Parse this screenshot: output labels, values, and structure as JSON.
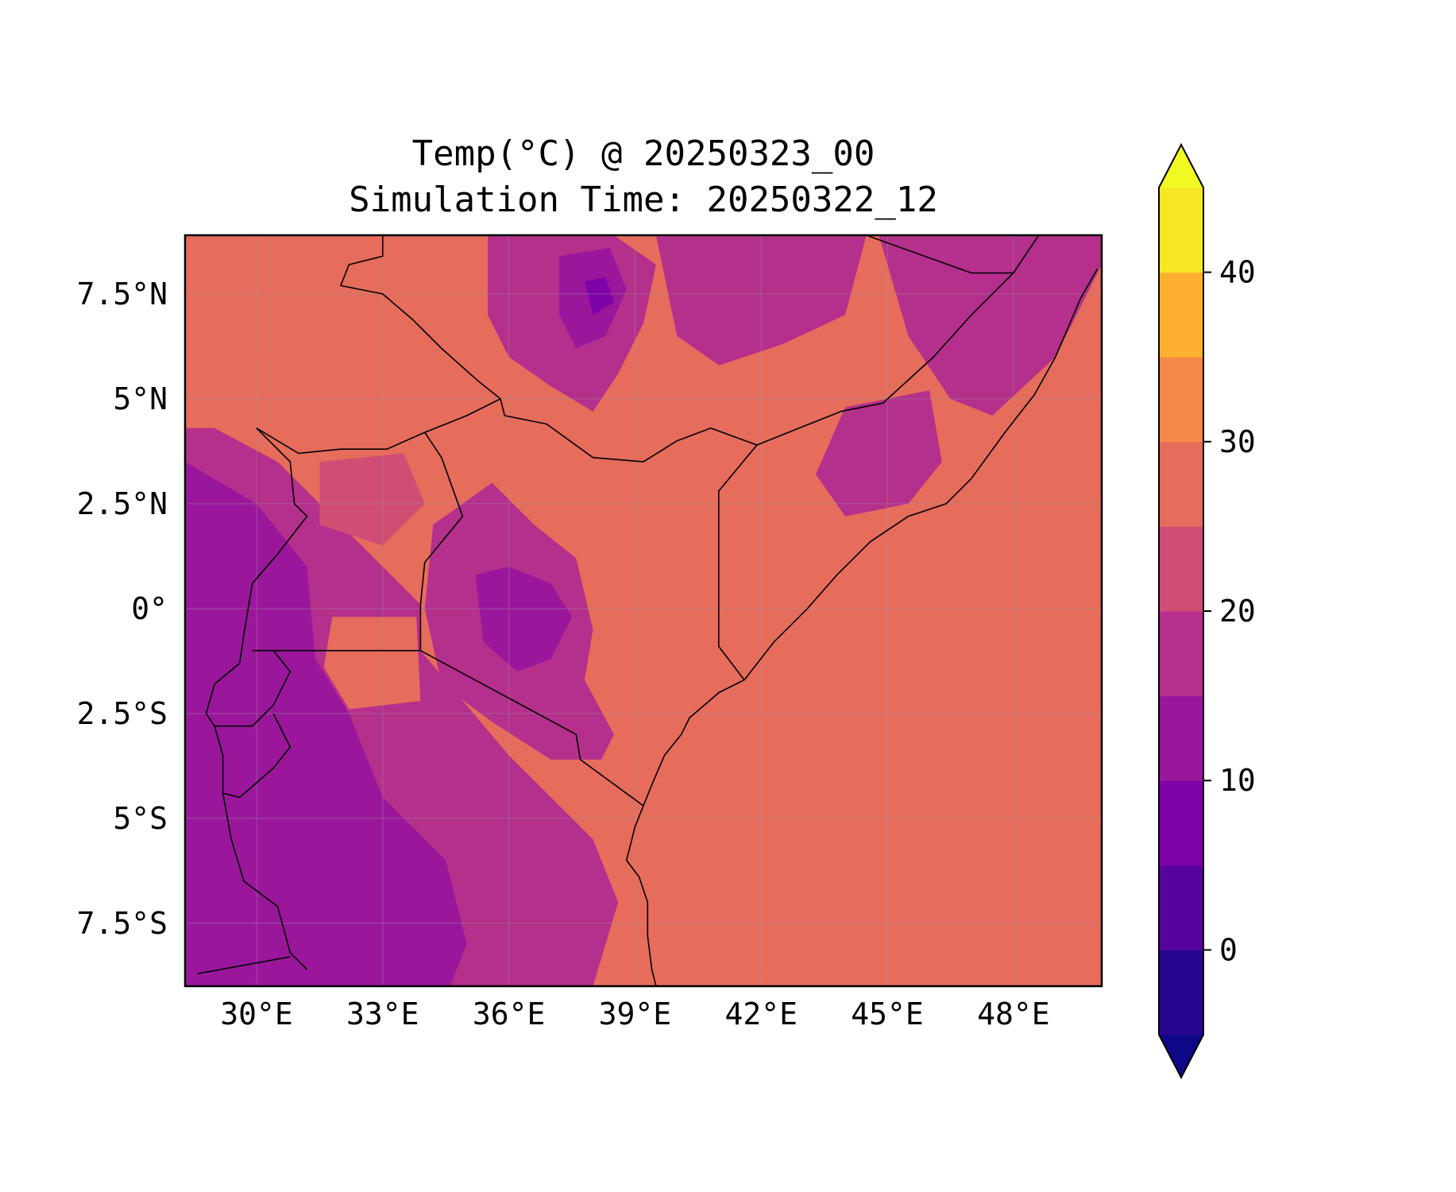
{
  "title": {
    "line1": "Temp(°C) @ 20250323_00",
    "line2": "Simulation Time: 20250322_12"
  },
  "map": {
    "extent": {
      "lon_min": 28.3,
      "lon_max": 50.1,
      "lat_min": -9.0,
      "lat_max": 8.9
    },
    "lon_ticks": [
      {
        "value": 30,
        "label": "30°E"
      },
      {
        "value": 33,
        "label": "33°E"
      },
      {
        "value": 36,
        "label": "36°E"
      },
      {
        "value": 39,
        "label": "39°E"
      },
      {
        "value": 42,
        "label": "42°E"
      },
      {
        "value": 45,
        "label": "45°E"
      },
      {
        "value": 48,
        "label": "48°E"
      }
    ],
    "lat_ticks": [
      {
        "value": 7.5,
        "label": "7.5°N"
      },
      {
        "value": 5,
        "label": "5°N"
      },
      {
        "value": 2.5,
        "label": "2.5°N"
      },
      {
        "value": 0,
        "label": "0°"
      },
      {
        "value": -2.5,
        "label": "2.5°S"
      },
      {
        "value": -5,
        "label": "5°S"
      },
      {
        "value": -7.5,
        "label": "7.5°S"
      }
    ],
    "gridlines": true,
    "borders": [
      {
        "name": "uganda-kenya",
        "coords": [
          [
            34.0,
            4.2
          ],
          [
            34.4,
            3.6
          ],
          [
            34.9,
            2.2
          ],
          [
            34.0,
            1.1
          ],
          [
            33.9,
            0.1
          ],
          [
            33.9,
            -1.0
          ]
        ]
      },
      {
        "name": "kenya-tanzania",
        "coords": [
          [
            33.9,
            -1.0
          ],
          [
            37.6,
            -3.0
          ],
          [
            37.7,
            -3.6
          ],
          [
            39.2,
            -4.7
          ]
        ]
      },
      {
        "name": "kenya-south-sudan-ethiopia",
        "coords": [
          [
            34.0,
            4.2
          ],
          [
            35.0,
            4.6
          ],
          [
            35.8,
            5.0
          ],
          [
            35.9,
            4.6
          ],
          [
            36.9,
            4.4
          ],
          [
            38.0,
            3.6
          ],
          [
            39.2,
            3.5
          ],
          [
            40.0,
            4.0
          ],
          [
            40.8,
            4.3
          ],
          [
            41.9,
            3.9
          ]
        ]
      },
      {
        "name": "kenya-somalia",
        "coords": [
          [
            41.9,
            3.9
          ],
          [
            40.99,
            2.8
          ],
          [
            40.99,
            -0.9
          ],
          [
            41.6,
            -1.7
          ]
        ]
      },
      {
        "name": "ethiopia-somalia",
        "coords": [
          [
            41.9,
            3.9
          ],
          [
            42.9,
            4.3
          ],
          [
            43.9,
            4.7
          ],
          [
            44.9,
            4.9
          ],
          [
            46.1,
            6.0
          ],
          [
            47.0,
            7.0
          ],
          [
            48.0,
            8.0
          ]
        ]
      },
      {
        "name": "somaliland-border",
        "coords": [
          [
            44.5,
            8.9
          ],
          [
            47.0,
            8.0
          ],
          [
            48.0,
            8.0
          ],
          [
            48.6,
            8.9
          ]
        ]
      },
      {
        "name": "uganda-south-sudan-drc",
        "coords": [
          [
            30.0,
            4.3
          ],
          [
            31.0,
            3.7
          ],
          [
            32.0,
            3.8
          ],
          [
            33.1,
            3.8
          ],
          [
            34.0,
            4.2
          ]
        ]
      },
      {
        "name": "drc-uganda",
        "coords": [
          [
            30.0,
            4.3
          ],
          [
            30.8,
            3.5
          ],
          [
            30.9,
            2.5
          ],
          [
            31.2,
            2.2
          ],
          [
            30.5,
            1.3
          ],
          [
            29.9,
            0.6
          ],
          [
            29.7,
            -0.6
          ],
          [
            29.6,
            -1.3
          ]
        ]
      },
      {
        "name": "uganda-tanzania-lake",
        "coords": [
          [
            29.9,
            -1.0
          ],
          [
            33.9,
            -1.0
          ]
        ]
      },
      {
        "name": "rwanda-burundi",
        "coords": [
          [
            29.6,
            -1.3
          ],
          [
            29.0,
            -1.8
          ],
          [
            28.8,
            -2.5
          ],
          [
            29.0,
            -2.8
          ],
          [
            29.9,
            -2.8
          ],
          [
            30.4,
            -2.3
          ],
          [
            30.8,
            -1.5
          ],
          [
            30.4,
            -1.0
          ]
        ]
      },
      {
        "name": "burundi-tanzania",
        "coords": [
          [
            29.0,
            -2.8
          ],
          [
            29.2,
            -3.5
          ],
          [
            29.2,
            -4.4
          ],
          [
            29.6,
            -4.5
          ],
          [
            30.4,
            -3.8
          ],
          [
            30.8,
            -3.3
          ],
          [
            30.4,
            -2.5
          ]
        ]
      },
      {
        "name": "lake-tanganyika-west",
        "coords": [
          [
            29.2,
            -4.4
          ],
          [
            29.4,
            -5.5
          ],
          [
            29.7,
            -6.5
          ],
          [
            30.5,
            -7.1
          ],
          [
            30.8,
            -8.2
          ],
          [
            31.2,
            -8.6
          ]
        ]
      },
      {
        "name": "zambia-tanzania",
        "coords": [
          [
            28.6,
            -8.7
          ],
          [
            30.8,
            -8.3
          ]
        ]
      },
      {
        "name": "south-sudan-ethiopia",
        "coords": [
          [
            33.0,
            8.9
          ],
          [
            33.0,
            8.4
          ],
          [
            32.2,
            8.2
          ],
          [
            32.0,
            7.7
          ],
          [
            33.0,
            7.5
          ],
          [
            33.7,
            6.9
          ],
          [
            34.4,
            6.2
          ],
          [
            35.3,
            5.4
          ],
          [
            35.8,
            5.0
          ]
        ]
      },
      {
        "name": "coast",
        "coords": [
          [
            39.2,
            -4.7
          ],
          [
            39.4,
            -4.2
          ],
          [
            39.7,
            -3.5
          ],
          [
            40.1,
            -3.0
          ],
          [
            40.3,
            -2.6
          ],
          [
            41.0,
            -2.0
          ],
          [
            41.6,
            -1.7
          ],
          [
            42.3,
            -0.8
          ],
          [
            43.1,
            0.0
          ],
          [
            43.8,
            0.8
          ],
          [
            44.6,
            1.6
          ],
          [
            45.5,
            2.2
          ],
          [
            46.4,
            2.5
          ],
          [
            47.0,
            3.1
          ],
          [
            47.8,
            4.2
          ],
          [
            48.5,
            5.1
          ],
          [
            49.0,
            6.0
          ],
          [
            49.6,
            7.4
          ],
          [
            50.0,
            8.1
          ]
        ]
      },
      {
        "name": "coast-south",
        "coords": [
          [
            39.2,
            -4.7
          ],
          [
            39.0,
            -5.2
          ],
          [
            38.8,
            -6.0
          ],
          [
            39.1,
            -6.4
          ],
          [
            39.3,
            -7.0
          ],
          [
            39.3,
            -7.8
          ],
          [
            39.4,
            -8.6
          ],
          [
            39.5,
            -9.0
          ]
        ]
      }
    ]
  },
  "field": {
    "variable": "Temp(°C)",
    "background_level_index": 7
  },
  "colorbar": {
    "levels": [
      -5,
      0,
      5,
      10,
      15,
      20,
      25,
      30,
      35,
      40,
      45
    ],
    "colors": [
      "#1b068d",
      "#4c02a1",
      "#7e03a8",
      "#a92395",
      "#cc4778",
      "#d5536f",
      "#e8735a",
      "#e97150",
      "#f89540",
      "#fdb32f",
      "#f0f921"
    ],
    "band_colors": [
      "#26068f",
      "#57039d",
      "#7e03a8",
      "#9a179b",
      "#b52f8c",
      "#d04e73",
      "#e66c5c",
      "#f48849",
      "#fdb030",
      "#f6e726"
    ],
    "extend_low_color": "#0d0887",
    "extend_high_color": "#f0f921",
    "ticks": [
      {
        "value": 0,
        "label": "0"
      },
      {
        "value": 10,
        "label": "10"
      },
      {
        "value": 20,
        "label": "20"
      },
      {
        "value": 30,
        "label": "30"
      },
      {
        "value": 40,
        "label": "40"
      }
    ]
  },
  "regions": [
    {
      "name": "ethiopian-highlands",
      "level": 5,
      "coords": [
        [
          35.5,
          8.9
        ],
        [
          38.5,
          8.9
        ],
        [
          39.5,
          8.2
        ],
        [
          39.2,
          6.8
        ],
        [
          38.6,
          5.6
        ],
        [
          38.0,
          4.7
        ],
        [
          37.0,
          5.3
        ],
        [
          36.0,
          6.0
        ],
        [
          35.5,
          7.0
        ]
      ]
    },
    {
      "name": "ethiopian-core",
      "level": 4,
      "coords": [
        [
          37.2,
          8.4
        ],
        [
          38.4,
          8.6
        ],
        [
          38.8,
          7.6
        ],
        [
          38.3,
          6.5
        ],
        [
          37.6,
          6.2
        ],
        [
          37.2,
          7.0
        ]
      ]
    },
    {
      "name": "ethiopian-cold",
      "level": 3,
      "coords": [
        [
          37.8,
          7.8
        ],
        [
          38.3,
          7.9
        ],
        [
          38.5,
          7.3
        ],
        [
          38.0,
          7.0
        ]
      ]
    },
    {
      "name": "east-ethiopia-cool",
      "level": 5,
      "coords": [
        [
          39.5,
          8.9
        ],
        [
          44.5,
          8.9
        ],
        [
          44.0,
          7.0
        ],
        [
          42.5,
          6.3
        ],
        [
          41.0,
          5.8
        ],
        [
          40.0,
          6.5
        ]
      ]
    },
    {
      "name": "somalia-north-cool",
      "level": 5,
      "coords": [
        [
          44.8,
          8.9
        ],
        [
          50.1,
          8.9
        ],
        [
          50.1,
          8.2
        ],
        [
          49.0,
          6.0
        ],
        [
          47.5,
          4.6
        ],
        [
          46.5,
          5.0
        ],
        [
          45.5,
          6.5
        ]
      ]
    },
    {
      "name": "kenya-highlands",
      "level": 5,
      "coords": [
        [
          34.2,
          2.0
        ],
        [
          35.6,
          3.0
        ],
        [
          36.6,
          2.0
        ],
        [
          37.6,
          1.2
        ],
        [
          38.0,
          -0.5
        ],
        [
          37.8,
          -1.7
        ],
        [
          38.5,
          -3.0
        ],
        [
          38.2,
          -3.6
        ],
        [
          37.0,
          -3.6
        ],
        [
          35.6,
          -2.7
        ],
        [
          34.4,
          -1.8
        ],
        [
          34.0,
          0.0
        ]
      ]
    },
    {
      "name": "kenya-highlands-core",
      "level": 4,
      "coords": [
        [
          35.2,
          0.8
        ],
        [
          36.0,
          1.0
        ],
        [
          37.0,
          0.6
        ],
        [
          37.5,
          -0.2
        ],
        [
          37.0,
          -1.2
        ],
        [
          36.2,
          -1.5
        ],
        [
          35.4,
          -0.8
        ]
      ]
    },
    {
      "name": "lake-basin-west",
      "level": 5,
      "coords": [
        [
          28.3,
          8.9
        ],
        [
          28.3,
          -9.0
        ],
        [
          38.0,
          -9.0
        ],
        [
          38.6,
          -7.0
        ],
        [
          38.0,
          -5.5
        ],
        [
          36.0,
          -3.5
        ],
        [
          33.9,
          -1.0
        ],
        [
          33.9,
          0.1
        ],
        [
          32.0,
          2.0
        ],
        [
          30.5,
          3.5
        ],
        [
          29.0,
          4.3
        ],
        [
          28.3,
          4.3
        ]
      ]
    },
    {
      "name": "western-highlands",
      "level": 4,
      "coords": [
        [
          28.3,
          3.5
        ],
        [
          30.0,
          2.5
        ],
        [
          31.2,
          1.0
        ],
        [
          31.4,
          -1.2
        ],
        [
          32.2,
          -2.5
        ],
        [
          33.0,
          -4.5
        ],
        [
          34.5,
          -6.0
        ],
        [
          35.0,
          -8.0
        ],
        [
          34.6,
          -9.0
        ],
        [
          28.3,
          -9.0
        ]
      ]
    },
    {
      "name": "lake-victoria-warm",
      "level": 7,
      "coords": [
        [
          31.8,
          -0.2
        ],
        [
          33.8,
          -0.2
        ],
        [
          33.9,
          -2.2
        ],
        [
          32.2,
          -2.4
        ],
        [
          31.6,
          -1.4
        ]
      ]
    },
    {
      "name": "south-sudan-warm",
      "level": 7,
      "coords": [
        [
          30.5,
          6.5
        ],
        [
          33.7,
          6.9
        ],
        [
          34.8,
          6.0
        ],
        [
          34.0,
          5.2
        ],
        [
          32.0,
          5.3
        ],
        [
          30.2,
          6.0
        ]
      ]
    },
    {
      "name": "uganda-north-warm",
      "level": 6,
      "coords": [
        [
          31.5,
          3.5
        ],
        [
          33.5,
          3.7
        ],
        [
          34.0,
          2.5
        ],
        [
          33.0,
          1.5
        ],
        [
          31.5,
          2.0
        ]
      ]
    },
    {
      "name": "tanzania-coast-warm",
      "level": 7,
      "coords": [
        [
          39.5,
          -3.8
        ],
        [
          41.5,
          -3.6
        ],
        [
          43.0,
          -4.2
        ],
        [
          45.0,
          -4.8
        ],
        [
          47.0,
          -5.8
        ],
        [
          48.5,
          -7.0
        ],
        [
          48.8,
          -8.3
        ],
        [
          46.0,
          -8.8
        ],
        [
          42.0,
          -8.6
        ],
        [
          40.5,
          -8.5
        ],
        [
          39.4,
          -7.8
        ],
        [
          39.0,
          -6.0
        ],
        [
          38.8,
          -5.0
        ]
      ]
    },
    {
      "name": "rift-valley-warm",
      "level": 7,
      "coords": [
        [
          35.8,
          4.5
        ],
        [
          36.3,
          4.5
        ],
        [
          36.6,
          3.0
        ],
        [
          36.2,
          2.8
        ]
      ]
    },
    {
      "name": "somalia-inland-cool",
      "level": 5,
      "coords": [
        [
          44.0,
          4.8
        ],
        [
          46.0,
          5.2
        ],
        [
          46.3,
          3.5
        ],
        [
          45.5,
          2.5
        ],
        [
          44.0,
          2.2
        ],
        [
          43.3,
          3.2
        ]
      ]
    }
  ]
}
